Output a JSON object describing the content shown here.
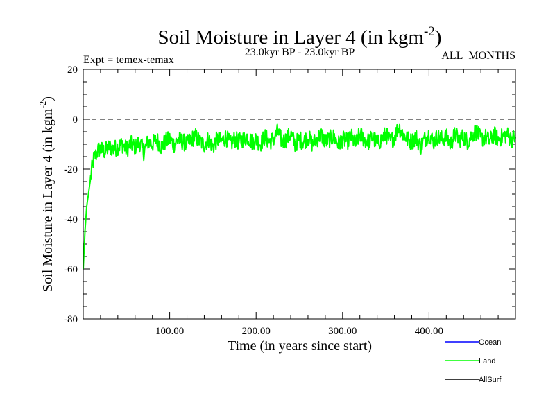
{
  "chart_data": {
    "type": "line",
    "title": "Soil Moisture in Layer 4 (in kgm",
    "title_superscript": "-2",
    "title_close": ")",
    "subtitle": "23.0kyr BP - 23.0kyr BP",
    "left_label": "Expt = temex-temax",
    "right_label": "ALL_MONTHS",
    "xlabel": "Time (in years since start)",
    "ylabel": "Soil Moisture in Layer 4 (in kgm",
    "ylabel_superscript": "-2",
    "ylabel_close": ")",
    "xlim": [
      0,
      500
    ],
    "ylim": [
      -80,
      20
    ],
    "x_ticks": [
      100,
      200,
      300,
      400
    ],
    "x_tick_labels": [
      "100.00",
      "200.00",
      "300.00",
      "400.00"
    ],
    "y_ticks": [
      -80,
      -60,
      -40,
      -20,
      0,
      20
    ],
    "y_tick_labels": [
      "-80",
      "-60",
      "-40",
      "-20",
      "0",
      "20"
    ],
    "reference_line": {
      "y": 0,
      "style": "dashed"
    },
    "legend": [
      {
        "name": "Ocean",
        "color": "#0000ff"
      },
      {
        "name": "Land",
        "color": "#00ff00"
      },
      {
        "name": "AllSurf",
        "color": "#000000"
      }
    ],
    "series": [
      {
        "name": "Land",
        "color": "#00ff00",
        "x": [
          0,
          2,
          4,
          6,
          8,
          10,
          12,
          15,
          18,
          20,
          25,
          30,
          35,
          40,
          45,
          50,
          55,
          60,
          65,
          70,
          75,
          80,
          85,
          90,
          95,
          100,
          105,
          110,
          115,
          120,
          125,
          130,
          135,
          140,
          145,
          150,
          155,
          160,
          165,
          170,
          175,
          180,
          185,
          190,
          195,
          200,
          205,
          210,
          215,
          220,
          225,
          230,
          235,
          240,
          245,
          250,
          255,
          260,
          265,
          270,
          275,
          280,
          285,
          290,
          295,
          300,
          305,
          310,
          315,
          320,
          325,
          330,
          335,
          340,
          345,
          350,
          355,
          360,
          365,
          370,
          375,
          380,
          385,
          390,
          395,
          400,
          405,
          410,
          415,
          420,
          425,
          430,
          435,
          440,
          445,
          450,
          455,
          460,
          465,
          470,
          475,
          480,
          485,
          490,
          495,
          500
        ],
        "values": [
          -60,
          -45,
          -35,
          -30,
          -25,
          -20,
          -16,
          -14,
          -12,
          -12,
          -13,
          -11,
          -12,
          -11,
          -10,
          -12,
          -10,
          -11,
          -9,
          -13,
          -9,
          -10,
          -8,
          -11,
          -9,
          -8,
          -10,
          -8,
          -9,
          -10,
          -8,
          -7,
          -9,
          -10,
          -8,
          -11,
          -8,
          -9,
          -7,
          -10,
          -8,
          -9,
          -8,
          -7,
          -9,
          -8,
          -10,
          -7,
          -9,
          -8,
          -5,
          -9,
          -8,
          -6,
          -10,
          -8,
          -9,
          -7,
          -10,
          -8,
          -6,
          -9,
          -8,
          -7,
          -10,
          -8,
          -9,
          -7,
          -10,
          -6,
          -8,
          -9,
          -7,
          -10,
          -8,
          -6,
          -9,
          -7,
          -3,
          -6,
          -8,
          -9,
          -7,
          -11,
          -8,
          -6,
          -9,
          -7,
          -8,
          -7,
          -10,
          -6,
          -8,
          -7,
          -9,
          -6,
          -5,
          -8,
          -7,
          -9,
          -6,
          -8,
          -7,
          -6,
          -8,
          -7
        ]
      }
    ]
  }
}
